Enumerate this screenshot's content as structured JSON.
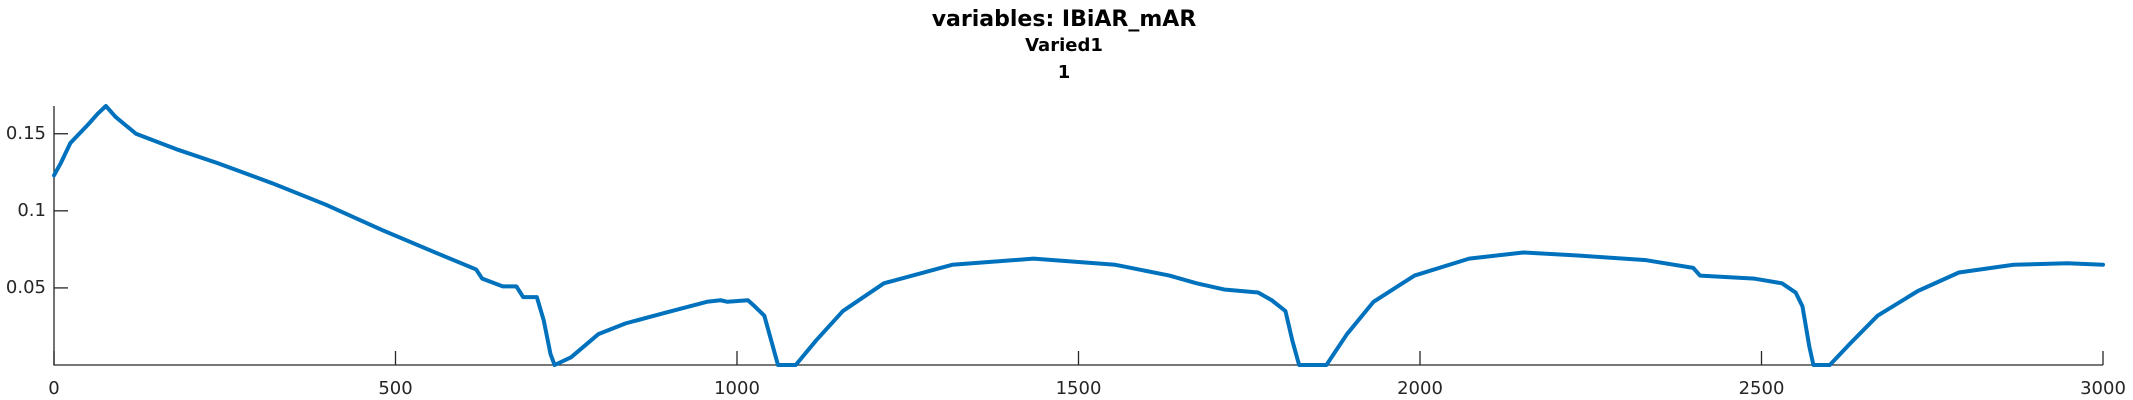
{
  "chart_data": {
    "type": "line",
    "title": "variables: IBiAR_mAR",
    "subtitle": [
      "Varied1",
      "1"
    ],
    "xlim": [
      0,
      3000
    ],
    "xticks": [
      0,
      500,
      1000,
      1500,
      2000,
      2500,
      3000
    ],
    "ylim": [
      0,
      0.168
    ],
    "yticks": [
      0.05,
      0.1,
      0.15
    ],
    "grid": false,
    "series": [
      {
        "color": "#0072bd",
        "x": [
          0,
          10,
          24,
          50,
          64,
          76,
          90,
          120,
          179,
          239,
          319,
          398,
          478,
          558,
          618,
          627,
          657,
          677,
          687,
          707,
          717,
          727,
          733,
          757,
          797,
          837,
          896,
          956,
          976,
          986,
          1016,
          1026,
          1040,
          1050,
          1060,
          1086,
          1116,
          1155,
          1215,
          1315,
          1434,
          1554,
          1633,
          1673,
          1713,
          1763,
          1783,
          1803,
          1813,
          1823,
          1863,
          1893,
          1932,
          1992,
          2072,
          2151,
          2231,
          2331,
          2400,
          2410,
          2490,
          2530,
          2550,
          2560,
          2570,
          2576,
          2600,
          2630,
          2670,
          2729,
          2789,
          2869,
          2948,
          3000
        ],
        "values": [
          0.123,
          0.131,
          0.144,
          0.156,
          0.163,
          0.168,
          0.161,
          0.15,
          0.14,
          0.131,
          0.118,
          0.104,
          0.088,
          0.073,
          0.062,
          0.056,
          0.051,
          0.051,
          0.044,
          0.044,
          0.029,
          0.007,
          0.0,
          0.005,
          0.02,
          0.027,
          0.034,
          0.041,
          0.042,
          0.041,
          0.042,
          0.038,
          0.032,
          0.016,
          0.0,
          0.0,
          0.016,
          0.035,
          0.053,
          0.065,
          0.069,
          0.065,
          0.058,
          0.053,
          0.049,
          0.047,
          0.042,
          0.035,
          0.016,
          0.0,
          0.0,
          0.02,
          0.041,
          0.058,
          0.069,
          0.073,
          0.071,
          0.068,
          0.063,
          0.058,
          0.056,
          0.053,
          0.047,
          0.038,
          0.012,
          0.0,
          0.0,
          0.014,
          0.032,
          0.048,
          0.06,
          0.065,
          0.066,
          0.065
        ]
      }
    ]
  }
}
